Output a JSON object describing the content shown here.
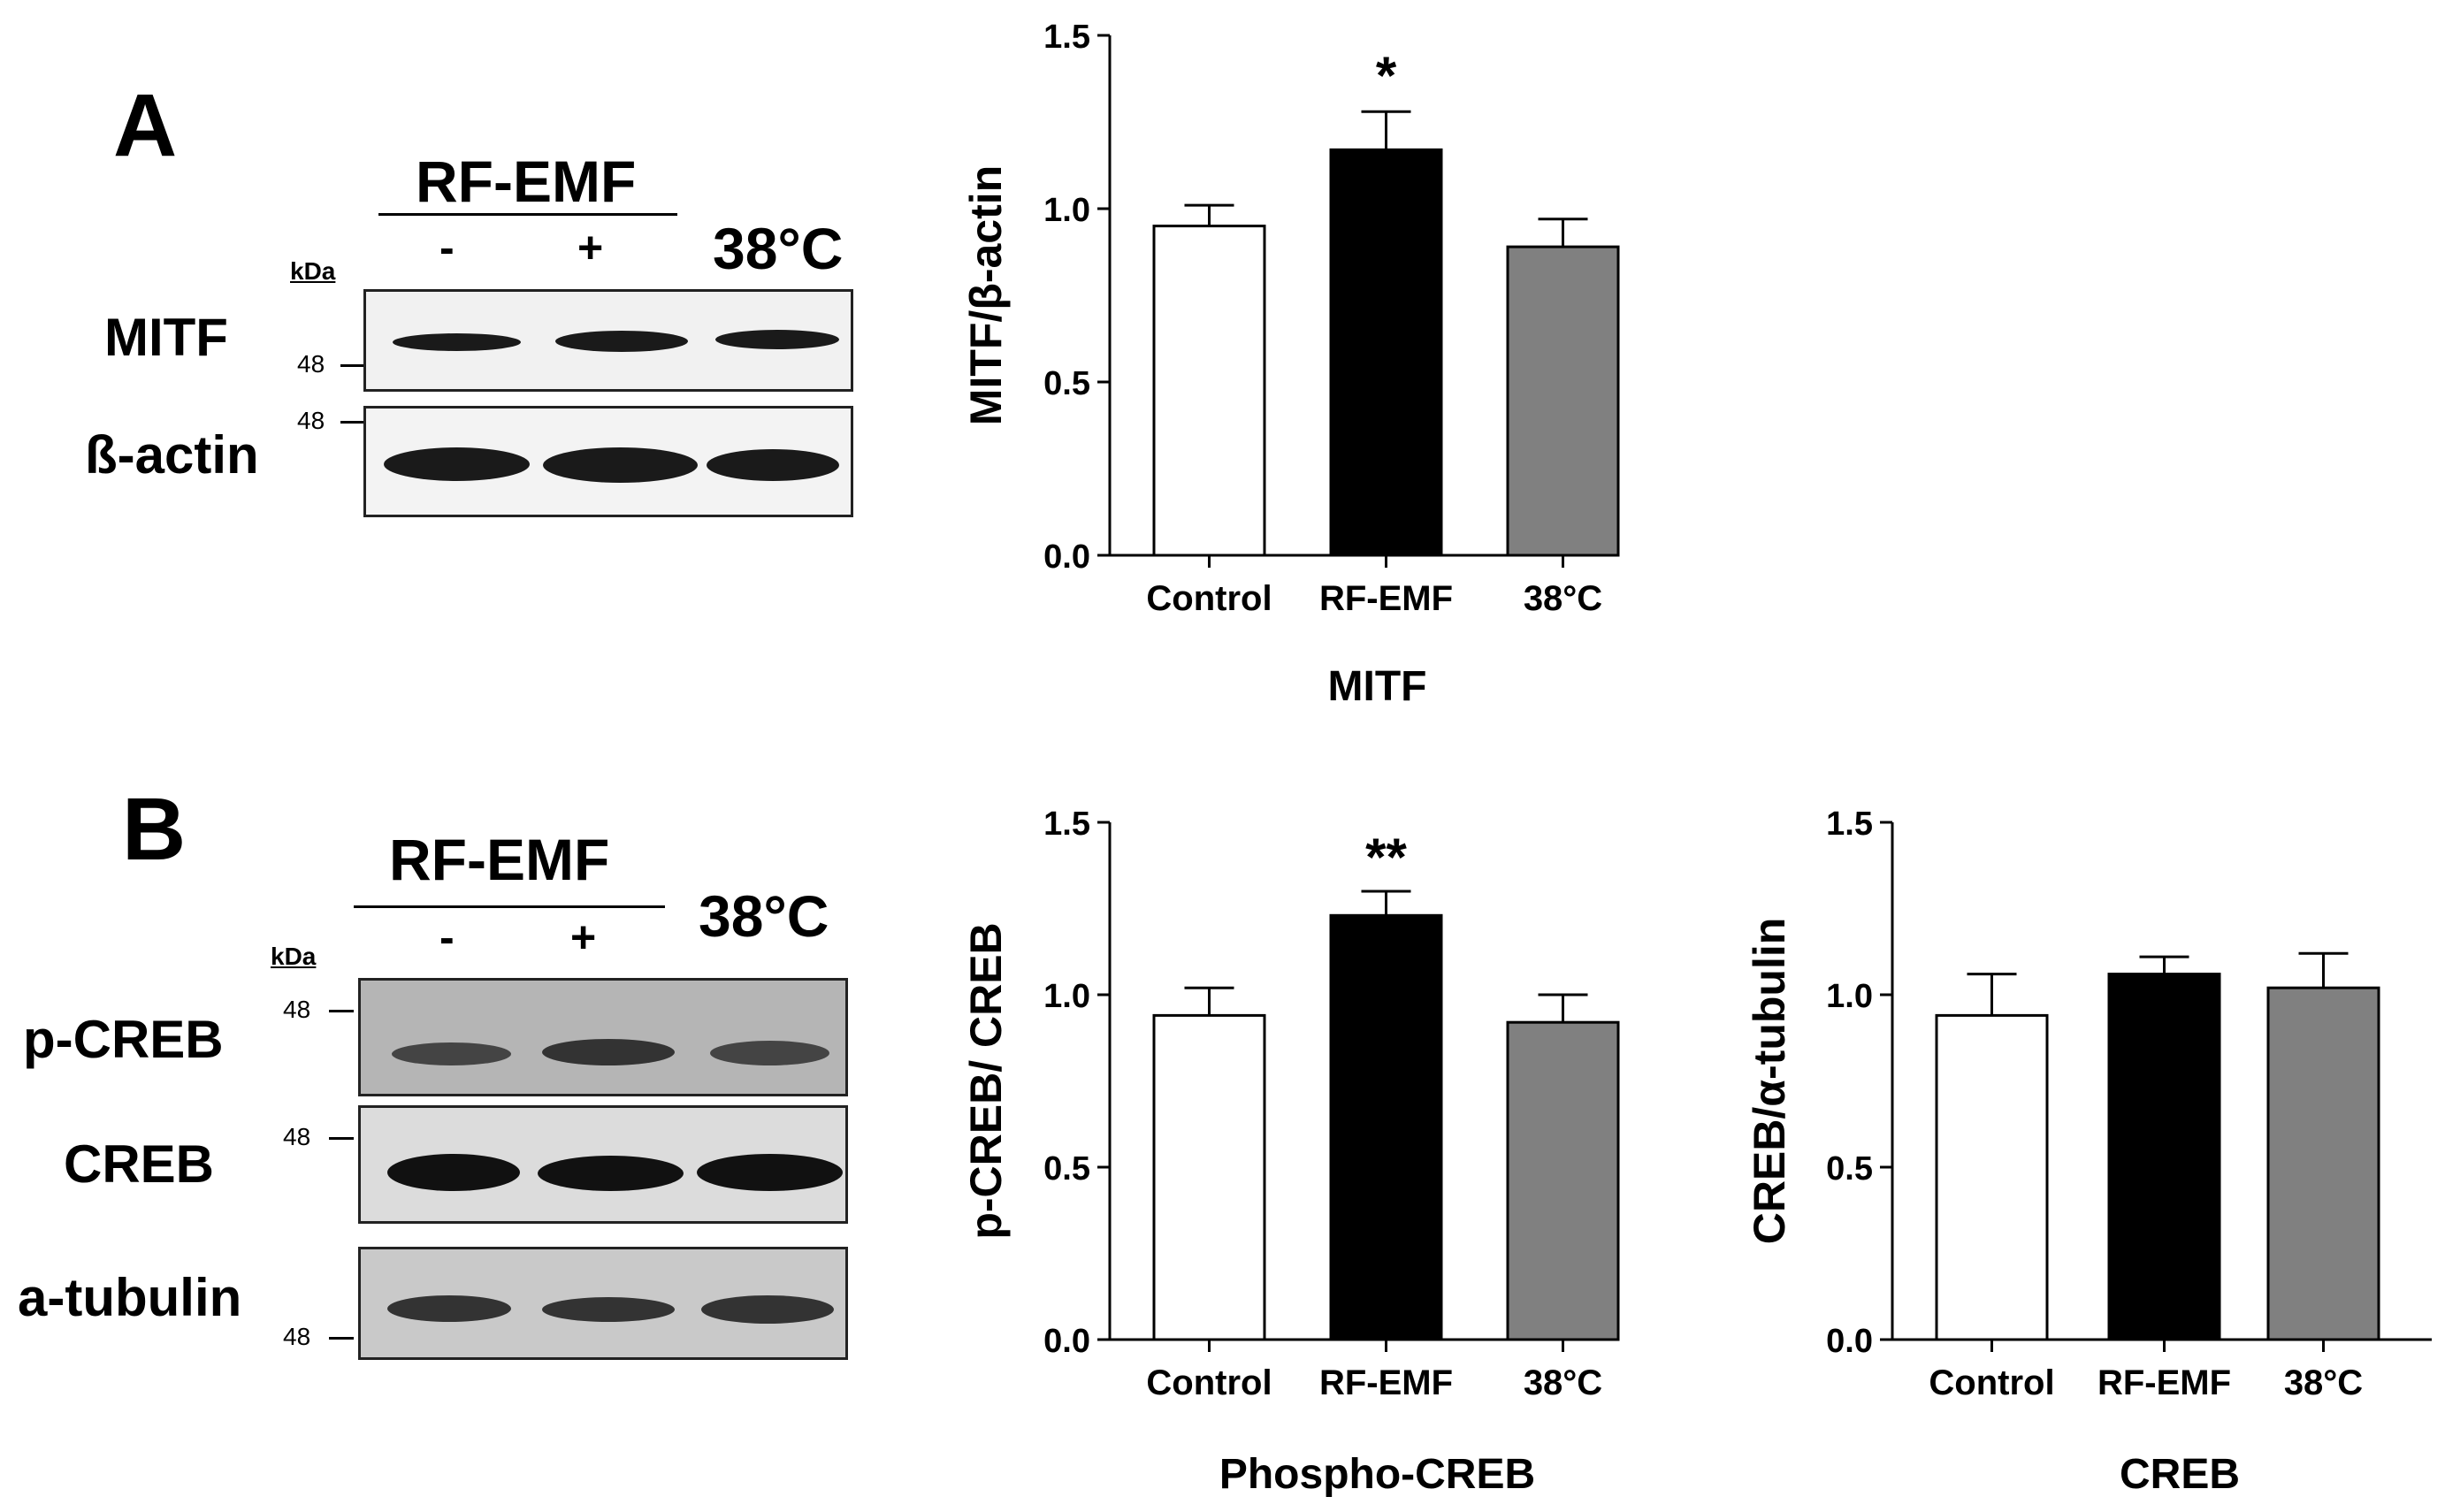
{
  "panels": [
    {
      "letter": "A",
      "blot": {
        "treatment_label": "RF-EMF",
        "minus": "-",
        "plus": "+",
        "temp_label": "38°C",
        "kda": "kDa",
        "rows": [
          {
            "label": "MITF",
            "mw": "48"
          },
          {
            "label": "ß-actin",
            "mw": "48"
          }
        ]
      }
    },
    {
      "letter": "B",
      "blot": {
        "treatment_label": "RF-EMF",
        "minus": "-",
        "plus": "+",
        "temp_label": "38°C",
        "kda": "kDa",
        "rows": [
          {
            "label": "p-CREB",
            "mw": "48"
          },
          {
            "label": "CREB",
            "mw": "48"
          },
          {
            "label": "a-tubulin",
            "mw": "48"
          }
        ]
      }
    }
  ],
  "chart_data": [
    {
      "type": "bar",
      "ylabel": "MITF/β-actin",
      "xlabel": "MITF",
      "categories": [
        "Control",
        "RF-EMF",
        "38°C"
      ],
      "values": [
        0.95,
        1.17,
        0.89
      ],
      "errors": [
        0.06,
        0.11,
        0.08
      ],
      "significance": [
        "",
        "*",
        ""
      ],
      "bar_colors": [
        "#ffffff",
        "#000000",
        "#808080"
      ],
      "ylim": [
        0.0,
        1.5
      ],
      "yticks": [
        "0.0",
        "0.5",
        "1.0",
        "1.5"
      ]
    },
    {
      "type": "bar",
      "ylabel": "p-CREB/ CREB",
      "xlabel": "Phospho-CREB",
      "categories": [
        "Control",
        "RF-EMF",
        "38°C"
      ],
      "values": [
        0.94,
        1.23,
        0.92
      ],
      "errors": [
        0.08,
        0.07,
        0.08
      ],
      "significance": [
        "",
        "**",
        ""
      ],
      "bar_colors": [
        "#ffffff",
        "#000000",
        "#808080"
      ],
      "ylim": [
        0.0,
        1.5
      ],
      "yticks": [
        "0.0",
        "0.5",
        "1.0",
        "1.5"
      ]
    },
    {
      "type": "bar",
      "ylabel": "CREB/α-tubulin",
      "xlabel": "CREB",
      "categories": [
        "Control",
        "RF-EMF",
        "38°C"
      ],
      "values": [
        0.94,
        1.06,
        1.02
      ],
      "errors": [
        0.12,
        0.05,
        0.1
      ],
      "significance": [
        "",
        "",
        ""
      ],
      "bar_colors": [
        "#ffffff",
        "#000000",
        "#808080"
      ],
      "ylim": [
        0.0,
        1.5
      ],
      "yticks": [
        "0.0",
        "0.5",
        "1.0",
        "1.5"
      ]
    }
  ]
}
